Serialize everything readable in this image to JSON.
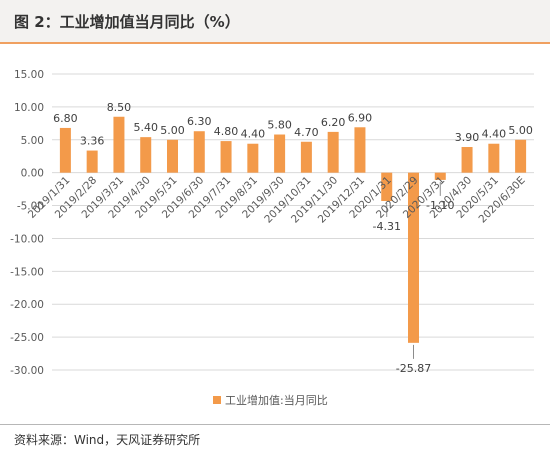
{
  "title": "图 2：工业增加值当月同比（%）",
  "source": "资料来源：Wind，天风证券研究所",
  "colors": {
    "bar": "#f39a4a",
    "grid": "#d9d9d9",
    "text": "#595959"
  },
  "chart_data": {
    "type": "bar",
    "categories": [
      "2019/1/31",
      "2019/2/28",
      "2019/3/31",
      "2019/4/30",
      "2019/5/31",
      "2019/6/30",
      "2019/7/31",
      "2019/8/31",
      "2019/9/30",
      "2019/10/31",
      "2019/11/30",
      "2019/12/31",
      "2020/1/31",
      "2020/2/29",
      "2020/3/31",
      "2020/4/30",
      "2020/5/31",
      "2020/6/30E"
    ],
    "series": [
      {
        "name": "工业增加值:当月同比",
        "values": [
          6.8,
          3.36,
          8.5,
          5.4,
          5.0,
          6.3,
          4.8,
          4.4,
          5.8,
          4.7,
          6.2,
          6.9,
          -4.31,
          -25.87,
          -1.1,
          3.9,
          4.4,
          5.0
        ]
      }
    ],
    "data_labels": [
      "6.80",
      "3.36",
      "8.50",
      "5.40",
      "5.00",
      "6.30",
      "4.80",
      "4.40",
      "5.80",
      "4.70",
      "6.20",
      "6.90",
      "-4.31",
      "-25.87",
      "-1.10",
      "3.90",
      "4.40",
      "5.00"
    ],
    "ylim": [
      -30,
      15
    ],
    "yticks": [
      15,
      10,
      5,
      0,
      -5,
      -10,
      -15,
      -20,
      -25,
      -30
    ],
    "ytick_labels": [
      "15.00",
      "10.00",
      "5.00",
      "0.00",
      "-5.00",
      "-10.00",
      "-15.00",
      "-20.00",
      "-25.00",
      "-30.00"
    ],
    "grid": true,
    "legend_position": "bottom"
  }
}
